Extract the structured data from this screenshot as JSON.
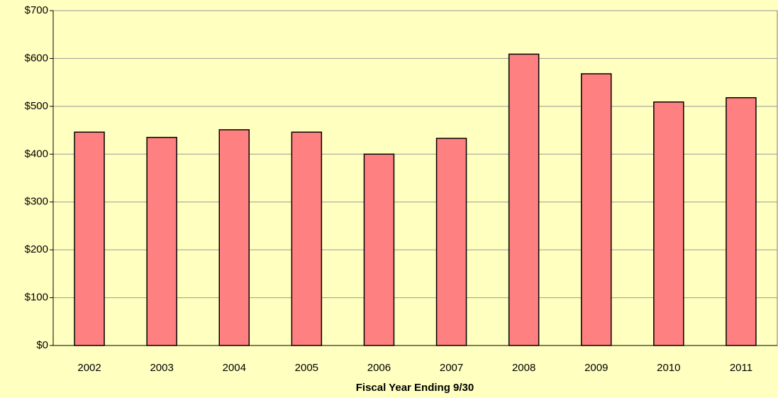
{
  "chart_data": {
    "type": "bar",
    "x_label": "Fiscal Year Ending 9/30",
    "categories": [
      "2002",
      "2003",
      "2004",
      "2005",
      "2006",
      "2007",
      "2008",
      "2009",
      "2010",
      "2011"
    ],
    "values": [
      446,
      435,
      451,
      446,
      400,
      433,
      609,
      568,
      509,
      518
    ],
    "color": "#ff8080",
    "ylim": [
      0,
      700
    ],
    "yticks": [
      {
        "value": 0,
        "label": "$0"
      },
      {
        "value": 100,
        "label": "$100"
      },
      {
        "value": 200,
        "label": "$200"
      },
      {
        "value": 300,
        "label": "$300"
      },
      {
        "value": 400,
        "label": "$400"
      },
      {
        "value": 500,
        "label": "$500"
      },
      {
        "value": 600,
        "label": "$600"
      },
      {
        "value": 700,
        "label": "$700"
      }
    ],
    "grid": true
  }
}
